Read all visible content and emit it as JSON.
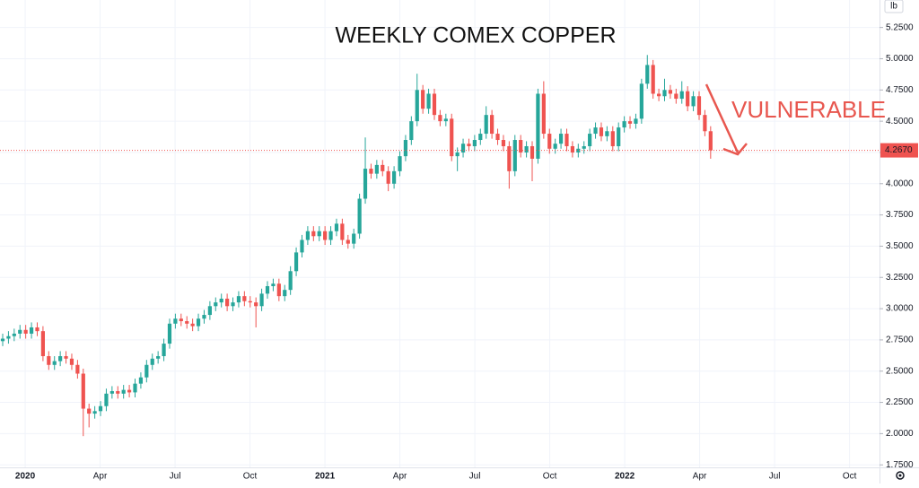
{
  "chart_data": {
    "type": "candlestick",
    "title": "WEEKLY COMEX COPPER",
    "annotation": "VULNERABLE",
    "unit": "lb",
    "up_color": "#26a69a",
    "down_color": "#ef5350",
    "grid": true,
    "last_price": {
      "value": 4.267,
      "label": "4.2670"
    },
    "xlim": [
      2019.916,
      2022.85
    ],
    "ylim": [
      1.73,
      5.47
    ],
    "xticks": [
      {
        "value": 2020,
        "label": "2020"
      },
      {
        "value": 2020.25,
        "label": "Apr"
      },
      {
        "value": 2020.5,
        "label": "Jul"
      },
      {
        "value": 2020.75,
        "label": "Oct"
      },
      {
        "value": 2021,
        "label": "2021"
      },
      {
        "value": 2021.25,
        "label": "Apr"
      },
      {
        "value": 2021.5,
        "label": "Jul"
      },
      {
        "value": 2021.75,
        "label": "Oct"
      },
      {
        "value": 2022,
        "label": "2022"
      },
      {
        "value": 2022.25,
        "label": "Apr"
      },
      {
        "value": 2022.5,
        "label": "Jul"
      },
      {
        "value": 2022.75,
        "label": "Oct"
      }
    ],
    "yticks": [
      {
        "value": 1.75,
        "label": "1.7500"
      },
      {
        "value": 2,
        "label": "2.0000"
      },
      {
        "value": 2.25,
        "label": "2.2500"
      },
      {
        "value": 2.5,
        "label": "2.5000"
      },
      {
        "value": 2.75,
        "label": "2.7500"
      },
      {
        "value": 3,
        "label": "3.0000"
      },
      {
        "value": 3.25,
        "label": "3.2500"
      },
      {
        "value": 3.5,
        "label": "3.5000"
      },
      {
        "value": 3.75,
        "label": "3.7500"
      },
      {
        "value": 4,
        "label": "4.0000"
      },
      {
        "value": 4.25,
        "label": "4.2500"
      },
      {
        "value": 4.5,
        "label": "4.5000"
      },
      {
        "value": 4.75,
        "label": "4.7500"
      },
      {
        "value": 5,
        "label": "5.0000"
      },
      {
        "value": 5.25,
        "label": "5.2500"
      }
    ],
    "x": [
      2019.925,
      2019.9442,
      2019.9634,
      2019.9826,
      2020.0018,
      2020.021,
      2020.0402,
      2020.0594,
      2020.0786,
      2020.0978,
      2020.117,
      2020.1362,
      2020.1554,
      2020.1746,
      2020.1938,
      2020.213,
      2020.2322,
      2020.2514,
      2020.2706,
      2020.2898,
      2020.309,
      2020.3282,
      2020.3474,
      2020.3666,
      2020.3858,
      2020.405,
      2020.4242,
      2020.4434,
      2020.4626,
      2020.4818,
      2020.501,
      2020.5202,
      2020.5394,
      2020.5586,
      2020.5778,
      2020.597,
      2020.6162,
      2020.6354,
      2020.6546,
      2020.6738,
      2020.693,
      2020.7122,
      2020.7314,
      2020.7506,
      2020.7698,
      2020.789,
      2020.8082,
      2020.8274,
      2020.8466,
      2020.8658,
      2020.885,
      2020.9042,
      2020.9234,
      2020.9426,
      2020.9618,
      2020.981,
      2021.0002,
      2021.0194,
      2021.0386,
      2021.0578,
      2021.077,
      2021.0962,
      2021.1154,
      2021.1346,
      2021.1538,
      2021.173,
      2021.1922,
      2021.2114,
      2021.2306,
      2021.2498,
      2021.269,
      2021.2882,
      2021.3074,
      2021.3266,
      2021.3458,
      2021.365,
      2021.3842,
      2021.4034,
      2021.4226,
      2021.4418,
      2021.461,
      2021.4802,
      2021.4994,
      2021.5186,
      2021.5378,
      2021.557,
      2021.5762,
      2021.5954,
      2021.6146,
      2021.6338,
      2021.653,
      2021.6722,
      2021.6914,
      2021.7106,
      2021.7298,
      2021.749,
      2021.7682,
      2021.7874,
      2021.8066,
      2021.8258,
      2021.845,
      2021.8642,
      2021.8834,
      2021.9026,
      2021.9218,
      2021.941,
      2021.9602,
      2021.9794,
      2021.9986,
      2022.0178,
      2022.037,
      2022.0562,
      2022.0754,
      2022.0946,
      2022.1138,
      2022.133,
      2022.1522,
      2022.1714,
      2022.1906,
      2022.2098,
      2022.229,
      2022.2482,
      2022.2674,
      2022.2866
    ],
    "open": [
      2.74,
      2.76,
      2.78,
      2.8,
      2.83,
      2.8,
      2.85,
      2.82,
      2.62,
      2.55,
      2.58,
      2.62,
      2.6,
      2.55,
      2.48,
      2.2,
      2.16,
      2.18,
      2.22,
      2.32,
      2.34,
      2.32,
      2.35,
      2.33,
      2.4,
      2.45,
      2.55,
      2.6,
      2.62,
      2.72,
      2.88,
      2.92,
      2.9,
      2.88,
      2.86,
      2.92,
      2.95,
      3.02,
      3.05,
      3.08,
      3.02,
      3.05,
      3.1,
      3.06,
      3.05,
      3.02,
      3.12,
      3.18,
      3.2,
      3.1,
      3.15,
      3.3,
      3.45,
      3.55,
      3.62,
      3.58,
      3.62,
      3.55,
      3.62,
      3.68,
      3.55,
      3.52,
      3.6,
      3.88,
      4.12,
      4.08,
      4.15,
      4.1,
      4.0,
      4.1,
      4.22,
      4.35,
      4.5,
      4.75,
      4.6,
      4.72,
      4.55,
      4.5,
      4.52,
      4.22,
      4.25,
      4.32,
      4.3,
      4.35,
      4.4,
      4.55,
      4.4,
      4.35,
      4.3,
      4.1,
      4.35,
      4.25,
      4.3,
      4.2,
      4.72,
      4.4,
      4.28,
      4.32,
      4.4,
      4.3,
      4.25,
      4.28,
      4.3,
      4.4,
      4.45,
      4.38,
      4.42,
      4.3,
      4.45,
      4.5,
      4.48,
      4.52,
      4.8,
      4.95,
      4.72,
      4.7,
      4.75,
      4.72,
      4.68,
      4.74,
      4.62,
      4.7,
      4.55,
      4.42
    ],
    "high": [
      2.8,
      2.82,
      2.84,
      2.87,
      2.87,
      2.89,
      2.89,
      2.86,
      2.66,
      2.62,
      2.66,
      2.66,
      2.64,
      2.59,
      2.52,
      2.24,
      2.22,
      2.26,
      2.36,
      2.38,
      2.38,
      2.39,
      2.39,
      2.44,
      2.49,
      2.59,
      2.64,
      2.66,
      2.76,
      2.92,
      2.96,
      2.96,
      2.94,
      2.92,
      2.96,
      2.99,
      3.06,
      3.09,
      3.12,
      3.12,
      3.09,
      3.14,
      3.14,
      3.1,
      3.09,
      3.16,
      3.22,
      3.24,
      3.24,
      3.19,
      3.34,
      3.49,
      3.59,
      3.66,
      3.66,
      3.66,
      3.66,
      3.66,
      3.72,
      3.72,
      3.59,
      3.64,
      3.92,
      4.37,
      4.16,
      4.19,
      4.19,
      4.14,
      4.14,
      4.26,
      4.39,
      4.54,
      4.88,
      4.79,
      4.76,
      4.76,
      4.59,
      4.56,
      4.56,
      4.29,
      4.36,
      4.36,
      4.39,
      4.44,
      4.62,
      4.59,
      4.44,
      4.39,
      4.34,
      4.39,
      4.39,
      4.34,
      4.34,
      4.76,
      4.82,
      4.44,
      4.36,
      4.44,
      4.44,
      4.34,
      4.32,
      4.34,
      4.44,
      4.49,
      4.49,
      4.46,
      4.46,
      4.49,
      4.54,
      4.54,
      4.56,
      4.84,
      5.03,
      4.99,
      4.76,
      4.84,
      4.79,
      4.76,
      4.82,
      4.78,
      4.74,
      4.74,
      4.59,
      4.46
    ],
    "low": [
      2.7,
      2.72,
      2.74,
      2.76,
      2.76,
      2.76,
      2.78,
      2.58,
      2.51,
      2.51,
      2.54,
      2.56,
      2.51,
      2.44,
      1.98,
      2.05,
      2.12,
      2.14,
      2.18,
      2.28,
      2.28,
      2.28,
      2.29,
      2.29,
      2.36,
      2.41,
      2.51,
      2.56,
      2.58,
      2.68,
      2.84,
      2.86,
      2.84,
      2.82,
      2.82,
      2.88,
      2.91,
      2.98,
      3.01,
      2.98,
      2.98,
      3.01,
      3.02,
      3.01,
      2.85,
      2.98,
      3.08,
      3.14,
      3.06,
      3.06,
      3.11,
      3.26,
      3.41,
      3.51,
      3.54,
      3.54,
      3.51,
      3.51,
      3.58,
      3.51,
      3.48,
      3.48,
      3.56,
      3.84,
      4.04,
      4.04,
      4.06,
      3.94,
      3.96,
      4.06,
      4.18,
      4.31,
      4.46,
      4.56,
      4.56,
      4.51,
      4.46,
      4.46,
      4.18,
      4.1,
      4.21,
      4.26,
      4.26,
      4.31,
      4.36,
      4.36,
      4.31,
      4.26,
      3.96,
      4.06,
      4.21,
      4.21,
      4.02,
      4.16,
      4.36,
      4.24,
      4.24,
      4.28,
      4.26,
      4.21,
      4.21,
      4.24,
      4.26,
      4.36,
      4.34,
      4.34,
      4.26,
      4.26,
      4.41,
      4.44,
      4.44,
      4.48,
      4.76,
      4.68,
      4.66,
      4.66,
      4.68,
      4.64,
      4.64,
      4.58,
      4.58,
      4.51,
      4.38,
      4.2
    ],
    "close": [
      2.76,
      2.78,
      2.8,
      2.83,
      2.8,
      2.85,
      2.82,
      2.62,
      2.55,
      2.58,
      2.62,
      2.6,
      2.55,
      2.48,
      2.2,
      2.16,
      2.18,
      2.22,
      2.32,
      2.34,
      2.32,
      2.35,
      2.33,
      2.4,
      2.45,
      2.55,
      2.6,
      2.62,
      2.72,
      2.88,
      2.92,
      2.9,
      2.88,
      2.86,
      2.92,
      2.95,
      3.02,
      3.05,
      3.08,
      3.02,
      3.05,
      3.1,
      3.06,
      3.05,
      3.02,
      3.12,
      3.18,
      3.2,
      3.1,
      3.15,
      3.3,
      3.45,
      3.55,
      3.62,
      3.58,
      3.62,
      3.55,
      3.62,
      3.68,
      3.55,
      3.52,
      3.6,
      3.88,
      4.12,
      4.08,
      4.15,
      4.1,
      4.0,
      4.1,
      4.22,
      4.35,
      4.5,
      4.75,
      4.6,
      4.72,
      4.55,
      4.5,
      4.52,
      4.22,
      4.25,
      4.32,
      4.3,
      4.35,
      4.4,
      4.55,
      4.4,
      4.35,
      4.3,
      4.1,
      4.35,
      4.25,
      4.3,
      4.2,
      4.72,
      4.4,
      4.28,
      4.32,
      4.4,
      4.3,
      4.25,
      4.28,
      4.3,
      4.4,
      4.45,
      4.38,
      4.42,
      4.3,
      4.45,
      4.5,
      4.48,
      4.52,
      4.8,
      4.95,
      4.72,
      4.7,
      4.75,
      4.72,
      4.68,
      4.74,
      4.62,
      4.7,
      4.55,
      4.42,
      4.267
    ]
  }
}
